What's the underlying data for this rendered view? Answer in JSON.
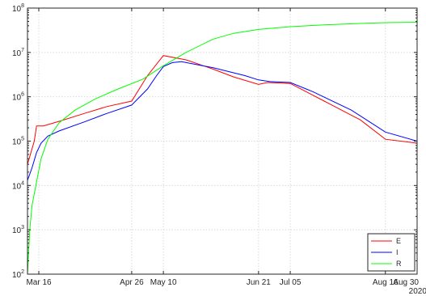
{
  "chart_data": {
    "type": "line",
    "yscale": "log",
    "ylim": [
      100,
      100000000
    ],
    "y_ticks": [
      {
        "base": "10",
        "exp": "2",
        "value": 100
      },
      {
        "base": "10",
        "exp": "3",
        "value": 1000
      },
      {
        "base": "10",
        "exp": "4",
        "value": 10000
      },
      {
        "base": "10",
        "exp": "5",
        "value": 100000
      },
      {
        "base": "10",
        "exp": "6",
        "value": 1000000
      },
      {
        "base": "10",
        "exp": "7",
        "value": 10000000
      },
      {
        "base": "10",
        "exp": "8",
        "value": 100000000
      }
    ],
    "xlim": [
      "2020-03-11",
      "2020-08-30"
    ],
    "x_ticks": [
      {
        "label": "Mar 16",
        "date": "2020-03-16"
      },
      {
        "label": "Apr 26",
        "date": "2020-04-26"
      },
      {
        "label": "May 10",
        "date": "2020-05-10"
      },
      {
        "label": "Jun 21",
        "date": "2020-06-21"
      },
      {
        "label": "Jul 05",
        "date": "2020-07-05"
      },
      {
        "label": "Aug 16",
        "date": "2020-08-16"
      },
      {
        "label": "Aug 30",
        "date": "2020-08-30"
      }
    ],
    "x_secondary_label": "2020",
    "grid": true,
    "legend_position": "bottom-right",
    "series": [
      {
        "name": "E",
        "color": "#ff0000",
        "points": [
          [
            "2020-03-11",
            30000
          ],
          [
            "2020-03-14",
            100000
          ],
          [
            "2020-03-15",
            220000
          ],
          [
            "2020-03-18",
            220000
          ],
          [
            "2020-03-25",
            280000
          ],
          [
            "2020-04-05",
            420000
          ],
          [
            "2020-04-15",
            600000
          ],
          [
            "2020-04-26",
            800000
          ],
          [
            "2020-05-03",
            3000000
          ],
          [
            "2020-05-10",
            8500000
          ],
          [
            "2020-05-20",
            6800000
          ],
          [
            "2020-06-01",
            4200000
          ],
          [
            "2020-06-10",
            2800000
          ],
          [
            "2020-06-21",
            1900000
          ],
          [
            "2020-06-25",
            2100000
          ],
          [
            "2020-07-05",
            2000000
          ],
          [
            "2020-07-20",
            800000
          ],
          [
            "2020-08-05",
            300000
          ],
          [
            "2020-08-16",
            110000
          ],
          [
            "2020-08-30",
            90000
          ]
        ]
      },
      {
        "name": "I",
        "color": "#0000ff",
        "points": [
          [
            "2020-03-11",
            13000
          ],
          [
            "2020-03-13",
            25000
          ],
          [
            "2020-03-15",
            55000
          ],
          [
            "2020-03-17",
            90000
          ],
          [
            "2020-03-20",
            130000
          ],
          [
            "2020-03-25",
            170000
          ],
          [
            "2020-04-05",
            270000
          ],
          [
            "2020-04-15",
            420000
          ],
          [
            "2020-04-26",
            650000
          ],
          [
            "2020-05-03",
            1500000
          ],
          [
            "2020-05-07",
            3000000
          ],
          [
            "2020-05-10",
            4800000
          ],
          [
            "2020-05-14",
            5900000
          ],
          [
            "2020-05-18",
            6200000
          ],
          [
            "2020-06-01",
            4500000
          ],
          [
            "2020-06-15",
            3000000
          ],
          [
            "2020-06-21",
            2400000
          ],
          [
            "2020-06-26",
            2200000
          ],
          [
            "2020-07-05",
            2100000
          ],
          [
            "2020-07-15",
            1300000
          ],
          [
            "2020-08-01",
            500000
          ],
          [
            "2020-08-16",
            160000
          ],
          [
            "2020-08-30",
            100000
          ]
        ]
      },
      {
        "name": "R",
        "color": "#00ff00",
        "points": [
          [
            "2020-03-11",
            100
          ],
          [
            "2020-03-12",
            1000
          ],
          [
            "2020-03-13",
            3500
          ],
          [
            "2020-03-15",
            12000
          ],
          [
            "2020-03-17",
            40000
          ],
          [
            "2020-03-20",
            110000
          ],
          [
            "2020-03-25",
            260000
          ],
          [
            "2020-04-01",
            500000
          ],
          [
            "2020-04-10",
            900000
          ],
          [
            "2020-04-20",
            1500000
          ],
          [
            "2020-05-01",
            2500000
          ],
          [
            "2020-05-10",
            5000000
          ],
          [
            "2020-05-20",
            10000000
          ],
          [
            "2020-06-01",
            20000000
          ],
          [
            "2020-06-10",
            27000000
          ],
          [
            "2020-06-21",
            33000000
          ],
          [
            "2020-07-05",
            38000000
          ],
          [
            "2020-07-20",
            42000000
          ],
          [
            "2020-08-05",
            45000000
          ],
          [
            "2020-08-16",
            47000000
          ],
          [
            "2020-08-30",
            48000000
          ]
        ]
      }
    ]
  }
}
